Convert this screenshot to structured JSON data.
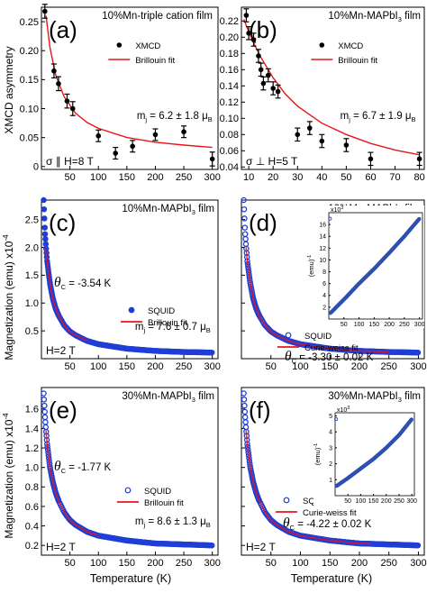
{
  "figure": {
    "xlabel": "Temperature (K)",
    "ylabel_top": "XMCD asymmetry",
    "ylabel_mid": "Magnetization (emu) x10",
    "ylabel_mid_exp": "-4",
    "ylabel_bot": "Magnetization (emu) x10",
    "ylabel_bot_exp": "-4",
    "colors": {
      "fit": "#e8141b",
      "squid": "#1f3ed6",
      "xmcd": "#000000",
      "inset": "#3050b0"
    }
  },
  "chart_data": [
    {
      "id": "a",
      "type": "scatter",
      "panel_letter": "(a)",
      "title": "10%Mn-triple cation film",
      "xlim": [
        0,
        310
      ],
      "ylim": [
        -0.005,
        0.275
      ],
      "xticks": [
        50,
        100,
        150,
        200,
        250,
        300
      ],
      "yticks": [
        0,
        0.05,
        0.1,
        0.15,
        0.2,
        0.25
      ],
      "yticklabels": [
        "0",
        "0.05",
        "0.10",
        "0.15",
        "0.20",
        "0.25"
      ],
      "legend": {
        "marker": "XMCD",
        "line": "Brillouin fit"
      },
      "annotation_text": "m",
      "annotation_sub": "j",
      "annotation_value": " = 6.2 ± 1.8 μ",
      "annotation_unit_sub": "B",
      "condition": "σ ∥ H=8 T",
      "points": [
        [
          6,
          0.268,
          0.012
        ],
        [
          22,
          0.165,
          0.012
        ],
        [
          30,
          0.143,
          0.012
        ],
        [
          45,
          0.113,
          0.012
        ],
        [
          55,
          0.1,
          0.012
        ],
        [
          100,
          0.053,
          0.01
        ],
        [
          130,
          0.023,
          0.01
        ],
        [
          160,
          0.035,
          0.01
        ],
        [
          200,
          0.055,
          0.01
        ],
        [
          250,
          0.06,
          0.01
        ],
        [
          300,
          0.013,
          0.012
        ]
      ],
      "fit": [
        [
          8,
          0.26
        ],
        [
          15,
          0.205
        ],
        [
          25,
          0.158
        ],
        [
          40,
          0.12
        ],
        [
          60,
          0.092
        ],
        [
          80,
          0.076
        ],
        [
          100,
          0.066
        ],
        [
          150,
          0.05
        ],
        [
          200,
          0.042
        ],
        [
          250,
          0.037
        ],
        [
          300,
          0.033
        ]
      ]
    },
    {
      "id": "b",
      "type": "scatter",
      "panel_letter": "(b)",
      "title": "10%Mn-MAPbI",
      "title_sub": "3",
      "title_end": " film",
      "xlim": [
        7,
        82
      ],
      "ylim": [
        0.037,
        0.237
      ],
      "xticks": [
        10,
        20,
        30,
        40,
        50,
        60,
        70,
        80
      ],
      "yticks": [
        0.04,
        0.06,
        0.08,
        0.1,
        0.12,
        0.14,
        0.16,
        0.18,
        0.2,
        0.22
      ],
      "yticklabels": [
        "0.04",
        "0.06",
        "0.08",
        "0.10",
        "0.12",
        "0.14",
        "0.16",
        "0.18",
        "0.20",
        "0.22"
      ],
      "legend": {
        "marker": "XMCD",
        "line": "Brillouin fit"
      },
      "annotation_text": "m",
      "annotation_sub": "j",
      "annotation_value": " = 6.7 ± 1.9 μ",
      "annotation_unit_sub": "B",
      "condition": "σ ⊥ H=5 T",
      "points": [
        [
          9,
          0.227,
          0.008
        ],
        [
          10,
          0.205,
          0.008
        ],
        [
          12,
          0.197,
          0.008
        ],
        [
          14,
          0.177,
          0.008
        ],
        [
          15,
          0.16,
          0.008
        ],
        [
          16,
          0.143,
          0.008
        ],
        [
          18,
          0.153,
          0.008
        ],
        [
          20,
          0.137,
          0.008
        ],
        [
          22,
          0.133,
          0.008
        ],
        [
          30,
          0.08,
          0.008
        ],
        [
          35,
          0.088,
          0.008
        ],
        [
          40,
          0.072,
          0.008
        ],
        [
          50,
          0.067,
          0.008
        ],
        [
          60,
          0.05,
          0.008
        ],
        [
          80,
          0.05,
          0.008
        ]
      ],
      "fit": [
        [
          8,
          0.222
        ],
        [
          10,
          0.207
        ],
        [
          12,
          0.193
        ],
        [
          15,
          0.175
        ],
        [
          18,
          0.16
        ],
        [
          20,
          0.15
        ],
        [
          25,
          0.13
        ],
        [
          30,
          0.115
        ],
        [
          40,
          0.094
        ],
        [
          50,
          0.08
        ],
        [
          60,
          0.069
        ],
        [
          70,
          0.061
        ],
        [
          80,
          0.055
        ]
      ]
    },
    {
      "id": "c",
      "type": "scatter",
      "panel_letter": "(c)",
      "title": "10%Mn-MAPbI",
      "title_sub": "3",
      "title_end": " film",
      "xlim": [
        0,
        310
      ],
      "ylim": [
        0,
        2.85
      ],
      "xticks": [
        50,
        100,
        150,
        200,
        250,
        300
      ],
      "yticks": [
        0.5,
        1.0,
        1.5,
        2.0,
        2.5
      ],
      "yticklabels": [
        "0.5",
        "1.0",
        "1.5",
        "2.0",
        "2.5"
      ],
      "legend": {
        "marker": "SQUID",
        "line": "Brillouin fit"
      },
      "theta_label": "θ",
      "theta_sub": "C",
      "theta_value": " = -3.54 K",
      "annotation_text": "m",
      "annotation_sub": "j",
      "annotation_value": " = 7.6 ± 0.7 μ",
      "annotation_unit_sub": "B",
      "condition": "H=2 T",
      "curve": [
        [
          4,
          2.85
        ],
        [
          6,
          2.3
        ],
        [
          8,
          2.0
        ],
        [
          10,
          1.75
        ],
        [
          15,
          1.35
        ],
        [
          20,
          1.08
        ],
        [
          25,
          0.9
        ],
        [
          30,
          0.78
        ],
        [
          40,
          0.6
        ],
        [
          50,
          0.49
        ],
        [
          60,
          0.42
        ],
        [
          80,
          0.32
        ],
        [
          100,
          0.26
        ],
        [
          150,
          0.18
        ],
        [
          200,
          0.14
        ],
        [
          250,
          0.12
        ],
        [
          300,
          0.11
        ]
      ],
      "fit_range": [
        8,
        80
      ]
    },
    {
      "id": "d",
      "type": "scatter",
      "panel_letter": "(d)",
      "title": "10%Mn-MAPbI",
      "title_sub": "3",
      "title_end": " film",
      "xlim": [
        0,
        310
      ],
      "ylim": [
        0,
        2.85
      ],
      "xticks": [
        50,
        100,
        150,
        200,
        250,
        300
      ],
      "yticks": [
        0.5,
        1.0,
        1.5,
        2.0,
        2.5
      ],
      "legend": {
        "marker": "SQUID",
        "line": "Curie-weiss fit"
      },
      "theta_label": "θ",
      "theta_sub": "C",
      "theta_value": " = -3.30 ± 0.02 K",
      "curve": [
        [
          4,
          2.85
        ],
        [
          6,
          2.3
        ],
        [
          8,
          2.0
        ],
        [
          10,
          1.75
        ],
        [
          15,
          1.35
        ],
        [
          20,
          1.08
        ],
        [
          25,
          0.9
        ],
        [
          30,
          0.78
        ],
        [
          40,
          0.6
        ],
        [
          50,
          0.49
        ],
        [
          60,
          0.42
        ],
        [
          80,
          0.32
        ],
        [
          100,
          0.26
        ],
        [
          150,
          0.18
        ],
        [
          200,
          0.14
        ],
        [
          250,
          0.12
        ],
        [
          300,
          0.11
        ]
      ],
      "fit_range": [
        8,
        250
      ],
      "inset": {
        "ylabel": "(emu)",
        "ylabel_exp": "-1",
        "exp_label": "x10",
        "exp_power": "3",
        "xlim": [
          0,
          310
        ],
        "ylim": [
          0,
          18
        ],
        "xticks": [
          50,
          100,
          150,
          200,
          250,
          300
        ],
        "yticks": [
          2,
          4,
          6,
          8,
          10,
          12,
          14,
          16
        ],
        "curve": [
          [
            5,
            1.0
          ],
          [
            50,
            3.3
          ],
          [
            100,
            6.0
          ],
          [
            150,
            8.5
          ],
          [
            200,
            11.2
          ],
          [
            250,
            14.0
          ],
          [
            300,
            17.0
          ]
        ]
      }
    },
    {
      "id": "e",
      "type": "scatter",
      "panel_letter": "(e)",
      "title": "30%Mn-MAPbI",
      "title_sub": "3",
      "title_end": " film",
      "xlim": [
        0,
        310
      ],
      "ylim": [
        0.1,
        1.82
      ],
      "xticks": [
        50,
        100,
        150,
        200,
        250,
        300
      ],
      "yticks": [
        0.2,
        0.4,
        0.6,
        0.8,
        1.0,
        1.2,
        1.4,
        1.6
      ],
      "yticklabels": [
        "0.2",
        "0.4",
        "0.6",
        "0.8",
        "1.0",
        "1.2",
        "1.4",
        "1.6"
      ],
      "legend": {
        "marker": "SQUID",
        "line": "Brillouin fit"
      },
      "theta_label": "θ",
      "theta_sub": "C",
      "theta_value": " = -1.77 K",
      "annotation_text": "m",
      "annotation_sub": "j",
      "annotation_value": " = 8.6 ± 1.3 μ",
      "annotation_unit_sub": "B",
      "condition": "H=2 T",
      "curve": [
        [
          4,
          1.76
        ],
        [
          6,
          1.55
        ],
        [
          8,
          1.38
        ],
        [
          10,
          1.24
        ],
        [
          15,
          1.0
        ],
        [
          20,
          0.85
        ],
        [
          25,
          0.74
        ],
        [
          30,
          0.66
        ],
        [
          40,
          0.54
        ],
        [
          50,
          0.46
        ],
        [
          60,
          0.41
        ],
        [
          80,
          0.34
        ],
        [
          100,
          0.3
        ],
        [
          150,
          0.25
        ],
        [
          200,
          0.22
        ],
        [
          250,
          0.21
        ],
        [
          300,
          0.2
        ]
      ],
      "fit_range": [
        8,
        100
      ]
    },
    {
      "id": "f",
      "type": "scatter",
      "panel_letter": "(f)",
      "title": "30%Mn-MAPbI",
      "title_sub": "3",
      "title_end": " film",
      "xlim": [
        0,
        310
      ],
      "ylim": [
        0.1,
        1.82
      ],
      "xticks": [
        50,
        100,
        150,
        200,
        250,
        300
      ],
      "yticks": [
        0.2,
        0.4,
        0.6,
        0.8,
        1.0,
        1.2,
        1.4,
        1.6
      ],
      "legend": {
        "marker": "SQUID",
        "line": "Curie-weiss fit"
      },
      "theta_label": "θ",
      "theta_sub": "C",
      "theta_value": " = -4.22 ± 0.02 K",
      "condition": "H=2 T",
      "curve": [
        [
          4,
          1.76
        ],
        [
          6,
          1.55
        ],
        [
          8,
          1.38
        ],
        [
          10,
          1.24
        ],
        [
          15,
          1.0
        ],
        [
          20,
          0.85
        ],
        [
          25,
          0.74
        ],
        [
          30,
          0.66
        ],
        [
          40,
          0.54
        ],
        [
          50,
          0.46
        ],
        [
          60,
          0.41
        ],
        [
          80,
          0.34
        ],
        [
          100,
          0.3
        ],
        [
          150,
          0.25
        ],
        [
          200,
          0.22
        ],
        [
          250,
          0.21
        ],
        [
          300,
          0.2
        ]
      ],
      "fit_range": [
        8,
        220
      ],
      "inset": {
        "ylabel": "(emu)",
        "ylabel_exp": "-1",
        "exp_label": "x10",
        "exp_power": "3",
        "xlim": [
          0,
          310
        ],
        "ylim": [
          0,
          5.2
        ],
        "xticks": [
          50,
          100,
          150,
          200,
          250,
          300
        ],
        "yticks": [
          1,
          2,
          3,
          4,
          5
        ],
        "curve": [
          [
            5,
            0.6
          ],
          [
            50,
            1.1
          ],
          [
            100,
            1.7
          ],
          [
            150,
            2.3
          ],
          [
            200,
            3.0
          ],
          [
            250,
            3.8
          ],
          [
            300,
            4.8
          ]
        ]
      }
    }
  ]
}
